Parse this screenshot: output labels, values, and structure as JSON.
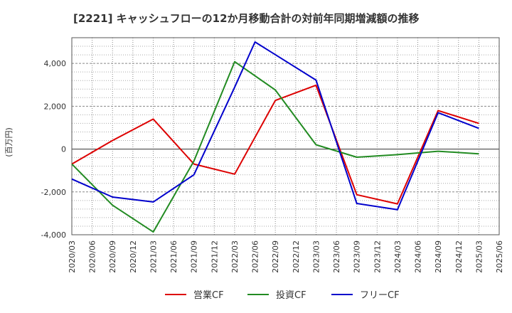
{
  "chart_data": {
    "type": "line",
    "title": "[2221]  キャッシュフローの12か月移動合計の対前年同期増減額の推移",
    "ylabel": "(百万円)",
    "xlabel": "",
    "ylim": [
      -4000,
      5200
    ],
    "yticks": [
      -4000,
      -2000,
      0,
      2000,
      4000
    ],
    "ytick_labels": [
      "-4,000",
      "-2,000",
      "0",
      "2,000",
      "4,000"
    ],
    "categories": [
      "2020/03",
      "2020/06",
      "2020/09",
      "2020/12",
      "2021/03",
      "2021/06",
      "2021/09",
      "2021/12",
      "2022/03",
      "2022/06",
      "2022/09",
      "2022/12",
      "2023/03",
      "2023/06",
      "2023/09",
      "2023/12",
      "2024/03",
      "2024/06",
      "2024/09",
      "2024/12",
      "2025/03",
      "2025/06"
    ],
    "series": [
      {
        "name": "営業CF",
        "color": "#dd0000",
        "points": [
          [
            0,
            -700
          ],
          [
            2,
            400
          ],
          [
            4,
            1400
          ],
          [
            6,
            -700
          ],
          [
            8,
            -1170
          ],
          [
            10,
            2270
          ],
          [
            12,
            2980
          ],
          [
            14,
            -2130
          ],
          [
            16,
            -2560
          ],
          [
            18,
            1800
          ],
          [
            20,
            1200
          ]
        ]
      },
      {
        "name": "投資CF",
        "color": "#228b22",
        "points": [
          [
            0,
            -700
          ],
          [
            2,
            -2620
          ],
          [
            4,
            -3870
          ],
          [
            6,
            -560
          ],
          [
            8,
            4080
          ],
          [
            10,
            2760
          ],
          [
            12,
            200
          ],
          [
            14,
            -380
          ],
          [
            16,
            -260
          ],
          [
            18,
            -100
          ],
          [
            20,
            -220
          ]
        ]
      },
      {
        "name": "フリーCF",
        "color": "#0000cc",
        "points": [
          [
            0,
            -1400
          ],
          [
            2,
            -2240
          ],
          [
            4,
            -2470
          ],
          [
            6,
            -1200
          ],
          [
            8,
            2890
          ],
          [
            9,
            5000
          ],
          [
            12,
            3220
          ],
          [
            14,
            -2540
          ],
          [
            16,
            -2830
          ],
          [
            18,
            1700
          ],
          [
            20,
            970
          ]
        ]
      }
    ],
    "grid": true,
    "legend": "bottom"
  }
}
